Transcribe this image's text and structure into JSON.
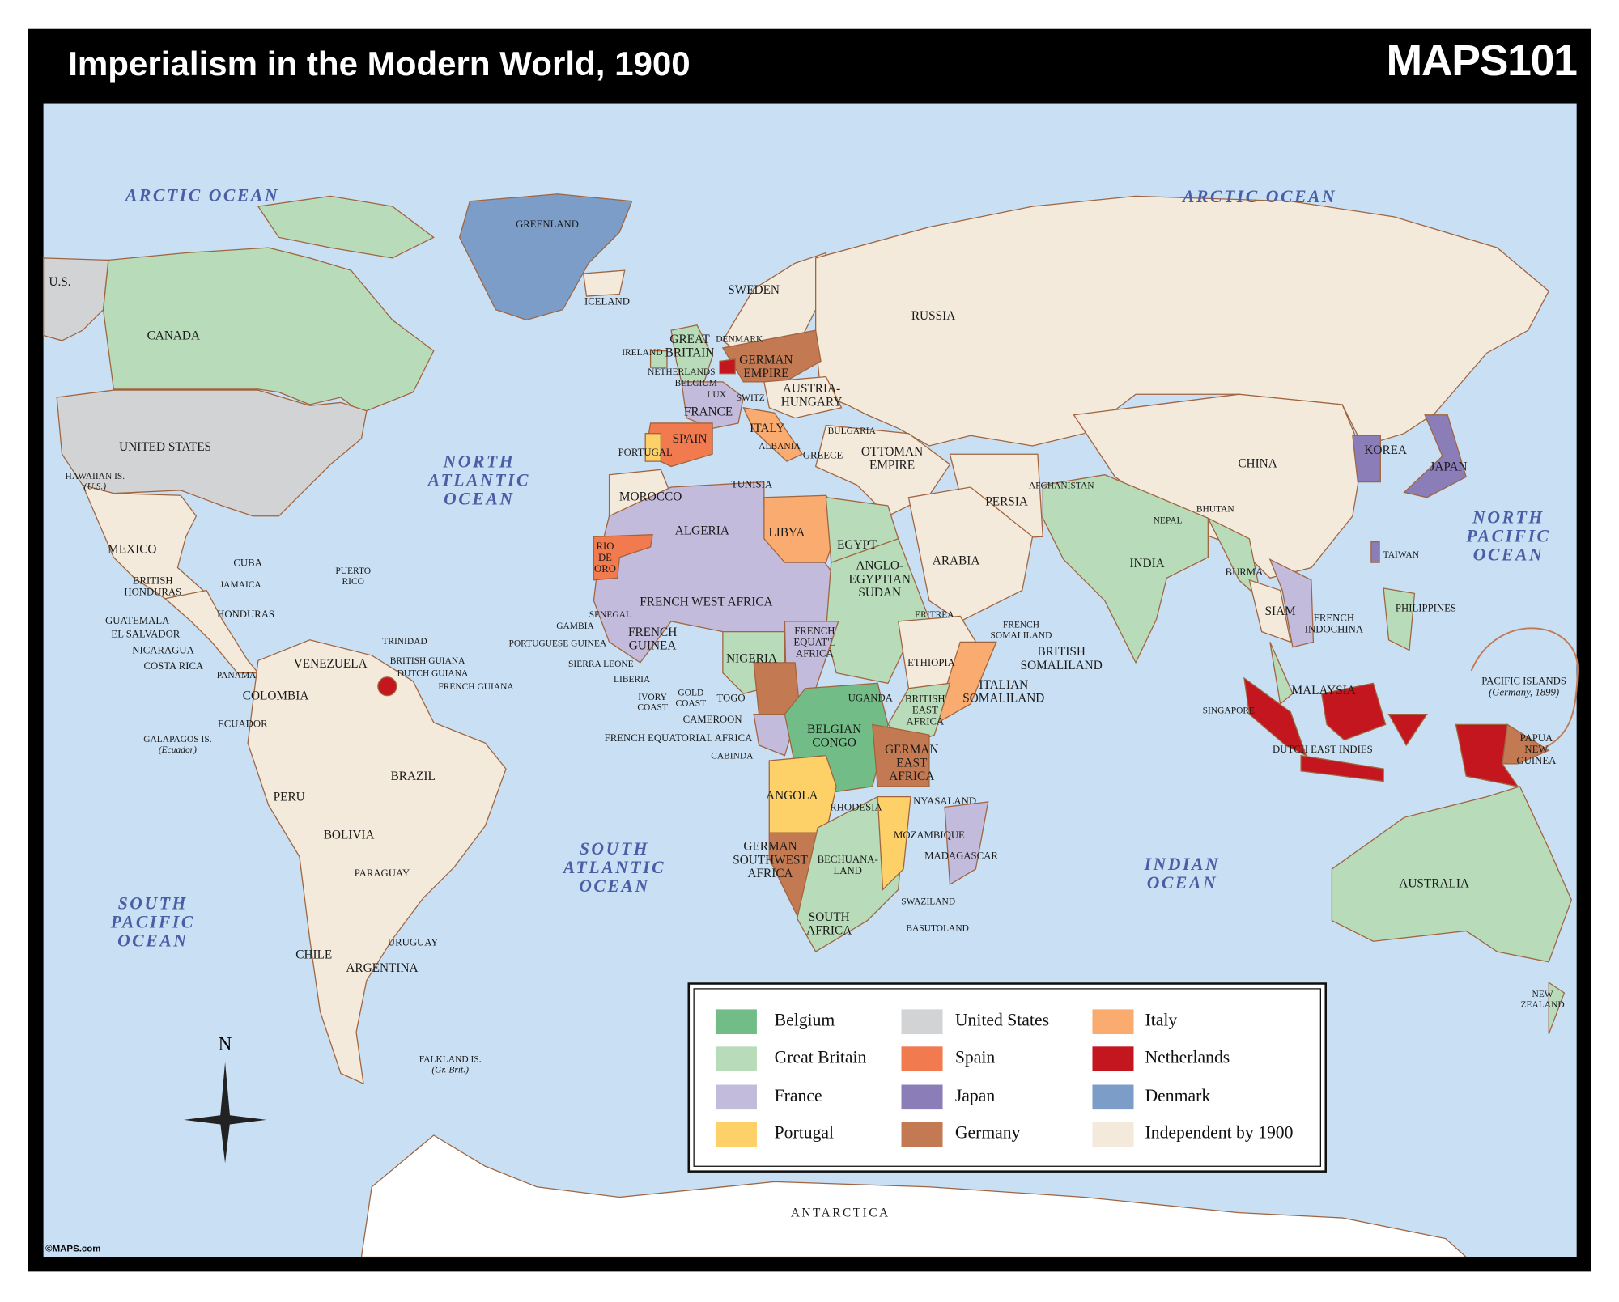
{
  "header": {
    "title": "Imperialism in the Modern World, 1900",
    "logo": "MAPS101"
  },
  "oceans": [
    [
      "ARCTIC OCEAN"
    ],
    [
      "ARCTIC OCEAN"
    ],
    [
      "NORTH",
      "ATLANTIC",
      "OCEAN"
    ],
    [
      "NORTH",
      "PACIFIC",
      "OCEAN"
    ],
    [
      "SOUTH",
      "ATLANTIC",
      "OCEAN"
    ],
    [
      "SOUTH",
      "PACIFIC",
      "OCEAN"
    ],
    [
      "INDIAN",
      "OCEAN"
    ]
  ],
  "places": [
    [
      "U.S."
    ],
    [
      "CANADA"
    ],
    [
      "UNITED STATES"
    ],
    [
      "HAWAIIAN IS.",
      "(U.S.)"
    ],
    [
      "MEXICO"
    ],
    [
      "BRITISH",
      "HONDURAS"
    ],
    [
      "CUBA"
    ],
    [
      "JAMAICA"
    ],
    [
      "PUERTO",
      "RICO"
    ],
    [
      "GUATEMALA"
    ],
    [
      "HONDURAS"
    ],
    [
      "EL SALVADOR"
    ],
    [
      "NICARAGUA"
    ],
    [
      "COSTA RICA"
    ],
    [
      "PANAMA"
    ],
    [
      "TRINIDAD"
    ],
    [
      "VENEZUELA"
    ],
    [
      "BRITISH GUIANA"
    ],
    [
      "DUTCH GUIANA"
    ],
    [
      "FRENCH GUIANA"
    ],
    [
      "COLOMBIA"
    ],
    [
      "ECUADOR"
    ],
    [
      "GALAPAGOS IS.",
      "(Ecuador)"
    ],
    [
      "BRAZIL"
    ],
    [
      "PERU"
    ],
    [
      "BOLIVIA"
    ],
    [
      "PARAGUAY"
    ],
    [
      "URUGUAY"
    ],
    [
      "CHILE"
    ],
    [
      "ARGENTINA"
    ],
    [
      "FALKLAND IS.",
      "(Gr. Brit.)"
    ],
    [
      "GREENLAND"
    ],
    [
      "ICELAND"
    ],
    [
      "SWEDEN"
    ],
    [
      "RUSSIA"
    ],
    [
      "GREAT",
      "BRITAIN"
    ],
    [
      "DENMARK"
    ],
    [
      "IRELAND"
    ],
    [
      "NETHERLANDS"
    ],
    [
      "GERMAN",
      "EMPIRE"
    ],
    [
      "BELGIUM"
    ],
    [
      "LUX"
    ],
    [
      "SWITZ"
    ],
    [
      "AUSTRIA-",
      "HUNGARY"
    ],
    [
      "FRANCE"
    ],
    [
      "ITALY"
    ],
    [
      "BULGARIA"
    ],
    [
      "SPAIN"
    ],
    [
      "ALBANIA"
    ],
    [
      "PORTUGAL"
    ],
    [
      "GREECE"
    ],
    [
      "OTTOMAN",
      "EMPIRE"
    ],
    [
      "TUNISIA"
    ],
    [
      "MOROCCO"
    ],
    [
      "ALGERIA"
    ],
    [
      "LIBYA"
    ],
    [
      "EGYPT"
    ],
    [
      "RIO",
      "DE",
      "ORO"
    ],
    [
      "FRENCH WEST AFRICA"
    ],
    [
      "ANGLO-",
      "EGYPTIAN",
      "SUDAN"
    ],
    [
      "SENEGAL"
    ],
    [
      "GAMBIA"
    ],
    [
      "PORTUGUESE GUINEA"
    ],
    [
      "FRENCH",
      "GUINEA"
    ],
    [
      "SIERRA LEONE"
    ],
    [
      "LIBERIA"
    ],
    [
      "NIGERIA"
    ],
    [
      "FRENCH",
      "EQUAT'L",
      "AFRICA"
    ],
    [
      "ERITREA"
    ],
    [
      "FRENCH",
      "SOMALILAND"
    ],
    [
      "ETHIOPIA"
    ],
    [
      "BRITISH",
      "SOMALILAND"
    ],
    [
      "ITALIAN",
      "SOMALILAND"
    ],
    [
      "IVORY",
      "COAST"
    ],
    [
      "GOLD",
      "COAST"
    ],
    [
      "TOGO"
    ],
    [
      "UGANDA"
    ],
    [
      "BRITISH",
      "EAST",
      "AFRICA"
    ],
    [
      "CAMEROON"
    ],
    [
      "FRENCH EQUATORIAL AFRICA"
    ],
    [
      "BELGIAN",
      "CONGO"
    ],
    [
      "GERMAN",
      "EAST",
      "AFRICA"
    ],
    [
      "CABINDA"
    ],
    [
      "ANGOLA"
    ],
    [
      "NYASALAND"
    ],
    [
      "RHODESIA"
    ],
    [
      "MOZAMBIQUE"
    ],
    [
      "MADAGASCAR"
    ],
    [
      "GERMAN",
      "SOUTHWEST",
      "AFRICA"
    ],
    [
      "BECHUANA-",
      "LAND"
    ],
    [
      "SWAZILAND"
    ],
    [
      "SOUTH",
      "AFRICA"
    ],
    [
      "BASUTOLAND"
    ],
    [
      "AFGHANISTAN"
    ],
    [
      "PERSIA"
    ],
    [
      "ARABIA"
    ],
    [
      "INDIA"
    ],
    [
      "NEPAL"
    ],
    [
      "BHUTAN"
    ],
    [
      "BURMA"
    ],
    [
      "CHINA"
    ],
    [
      "KOREA"
    ],
    [
      "JAPAN"
    ],
    [
      "TAIWAN"
    ],
    [
      "SIAM"
    ],
    [
      "FRENCH",
      "INDOCHINA"
    ],
    [
      "PHILIPPINES"
    ],
    [
      "MALAYSIA"
    ],
    [
      "SINGAPORE"
    ],
    [
      "DUTCH EAST INDIES"
    ],
    [
      "PACIFIC ISLANDS",
      "(Germany, 1899)"
    ],
    [
      "PAPUA",
      "NEW",
      "GUINEA"
    ],
    [
      "AUSTRALIA"
    ],
    [
      "NEW",
      "ZEALAND"
    ]
  ],
  "antarctica": "ANTARCTICA",
  "compass": "N",
  "copyright": "©MAPS.com",
  "legend": {
    "items": [
      {
        "label": "Belgium",
        "color": "#72bd87"
      },
      {
        "label": "Great Britain",
        "color": "#b8dcb9"
      },
      {
        "label": "France",
        "color": "#c2bbdb"
      },
      {
        "label": "Portugal",
        "color": "#fdd068"
      },
      {
        "label": "United States",
        "color": "#d2d3d4"
      },
      {
        "label": "Spain",
        "color": "#f17a4e"
      },
      {
        "label": "Japan",
        "color": "#8a7db8"
      },
      {
        "label": "Germany",
        "color": "#c37a53"
      },
      {
        "label": "Italy",
        "color": "#f9ab70"
      },
      {
        "label": "Netherlands",
        "color": "#c3161f"
      },
      {
        "label": "Denmark",
        "color": "#7b9dc7"
      },
      {
        "label": "Independent by 1900",
        "color": "#f3eadc"
      }
    ]
  }
}
